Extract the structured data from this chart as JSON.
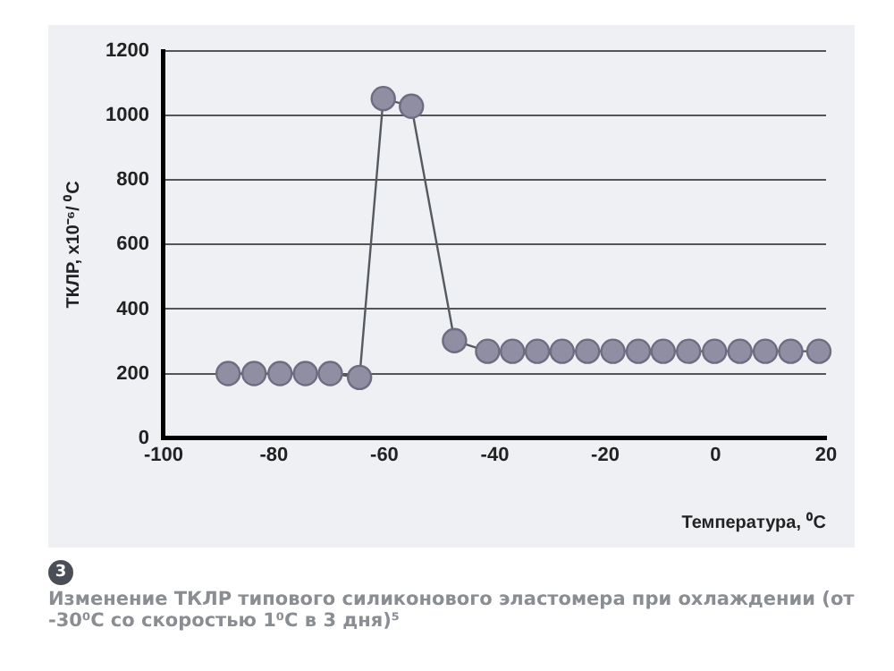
{
  "chart_data": {
    "type": "line",
    "xlabel": "Температура, ⁰C",
    "ylabel": "ТКЛР, x10⁻⁶/ ⁰C",
    "x": [
      -88.3,
      -83.6,
      -78.9,
      -74.3,
      -69.8,
      -64.5,
      -60.2,
      -55.1,
      -47.3,
      -41.3,
      -36.8,
      -32.3,
      -27.8,
      -23.2,
      -18.6,
      -14,
      -9.5,
      -4.9,
      -0.2,
      4.4,
      9,
      13.6,
      18.7
    ],
    "series": [
      {
        "color": "#8f8ea3",
        "values": [
          200,
          200,
          200,
          200,
          200,
          188,
          1053,
          1029,
          302,
          269,
          269,
          269,
          269,
          269,
          269,
          269,
          269,
          269,
          269,
          269,
          269,
          269,
          269
        ]
      }
    ],
    "xlim": [
      -100,
      20
    ],
    "xticks": [
      -100,
      -80,
      -60,
      -40,
      -20,
      0,
      20
    ],
    "ylim": [
      0,
      1200
    ],
    "yticks": [
      0,
      200,
      400,
      600,
      800,
      1000,
      1200
    ],
    "grid": "y",
    "legend": false,
    "marker": "circle",
    "line_style": "solid",
    "annotations": [
      "3",
      "Изменение ТКЛР типового силиконового эластомера при охлаждении (от -30⁰C со скоростью 1⁰C в 3 дня)⁵"
    ]
  }
}
